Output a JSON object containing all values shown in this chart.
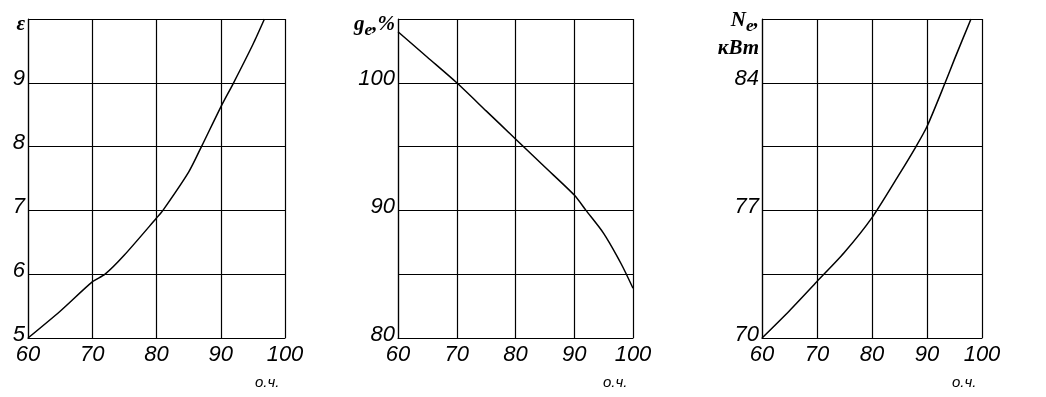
{
  "chart_data": [
    {
      "type": "line",
      "xlabel": "о.ч.",
      "ylabel": "ε",
      "x": [
        60,
        65,
        70,
        72,
        75,
        80,
        81,
        85,
        87,
        90,
        92,
        95,
        96.8
      ],
      "series": [
        {
          "color": "#000000",
          "values": [
            5,
            5.42,
            5.88,
            6,
            6.3,
            6.88,
            7,
            7.6,
            8,
            8.62,
            9,
            9.6,
            10
          ]
        }
      ],
      "xlim": [
        60,
        100
      ],
      "xticks": [
        60,
        70,
        80,
        90,
        100
      ],
      "ylim": [
        5,
        10
      ],
      "yticks": [
        5,
        6,
        7,
        8,
        9,
        {
          "value": 10,
          "label": null
        }
      ],
      "grid": true,
      "marker": "none",
      "line_style": "solid"
    },
    {
      "type": "line",
      "xlabel": "о.ч.",
      "ylabel": "g$_{e}$,%",
      "x": [
        60,
        65,
        70,
        75,
        80,
        85,
        90,
        92,
        95,
        98,
        100
      ],
      "series": [
        {
          "color": "#000000",
          "values": [
            104,
            102,
            100,
            97.8,
            95.6,
            93.4,
            91.2,
            90,
            88.2,
            85.8,
            83.9
          ]
        }
      ],
      "xlim": [
        60,
        100
      ],
      "xticks": [
        60,
        70,
        80,
        90,
        100
      ],
      "ylim": [
        80,
        105
      ],
      "yticks": [
        80,
        {
          "value": 85,
          "label": null
        },
        90,
        {
          "value": 95,
          "label": null
        },
        100,
        {
          "value": 105,
          "label": null
        }
      ],
      "grid": true,
      "marker": "none",
      "line_style": "solid"
    },
    {
      "type": "line",
      "xlabel": "о.ч.",
      "ylabel": "N$_{e}$, кВт",
      "x": [
        60,
        65,
        70,
        75,
        80,
        85,
        88,
        90,
        93.3,
        95,
        98
      ],
      "series": [
        {
          "color": "#000000",
          "values": [
            70,
            71.5,
            73.1,
            74.7,
            76.6,
            79,
            80.5,
            81.6,
            84,
            85.3,
            87.5
          ]
        }
      ],
      "xlim": [
        60,
        100
      ],
      "xticks": [
        60,
        70,
        80,
        90,
        100
      ],
      "ylim": [
        70,
        87.5
      ],
      "yticks": [
        70,
        {
          "value": 73.5,
          "label": null
        },
        77,
        {
          "value": 80.5,
          "label": null
        },
        84,
        {
          "value": 87.5,
          "label": null
        }
      ],
      "grid": true,
      "marker": "none",
      "line_style": "solid"
    }
  ]
}
